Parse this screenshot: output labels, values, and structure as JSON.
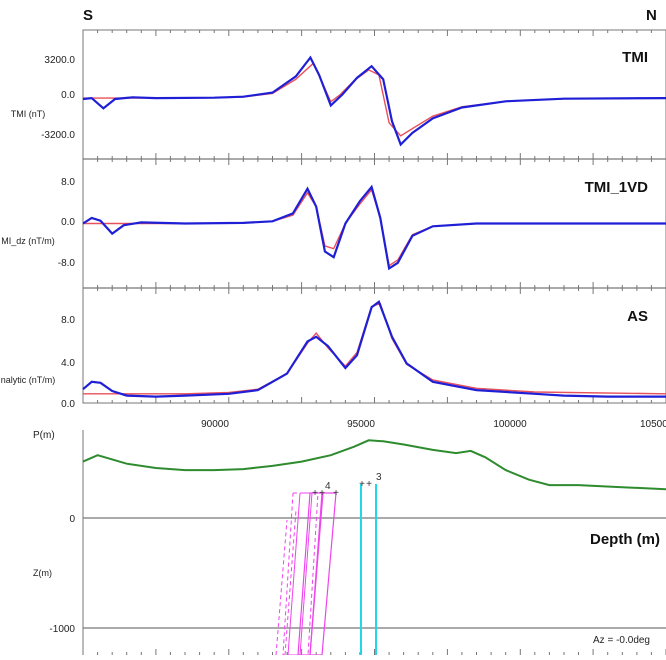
{
  "header": {
    "left_label": "S",
    "right_label": "N"
  },
  "chart_data": [
    {
      "type": "line",
      "title": "TMI",
      "ylabel": "TMI (nT)",
      "yticks": [
        "3200.0",
        "0.0",
        "-3200.0"
      ],
      "ylim": [
        -4200,
        4700
      ],
      "x_range": [
        85500,
        105500
      ],
      "series": [
        {
          "color": "#e8505a",
          "points": [
            [
              85500,
              0
            ],
            [
              86500,
              0
            ],
            [
              88000,
              0
            ],
            [
              90000,
              20
            ],
            [
              91000,
              80
            ],
            [
              92000,
              320
            ],
            [
              92800,
              1300
            ],
            [
              93400,
              2400
            ],
            [
              93700,
              1100
            ],
            [
              94000,
              -250
            ],
            [
              94300,
              200
            ],
            [
              94800,
              1200
            ],
            [
              95300,
              1950
            ],
            [
              95650,
              1600
            ],
            [
              96000,
              -1700
            ],
            [
              96400,
              -2600
            ],
            [
              96800,
              -2100
            ],
            [
              97500,
              -1250
            ],
            [
              98500,
              -600
            ],
            [
              100000,
              -220
            ],
            [
              102000,
              -50
            ],
            [
              105500,
              0
            ]
          ]
        },
        {
          "color": "#1f1fd6",
          "points": [
            [
              85500,
              -60
            ],
            [
              85800,
              0
            ],
            [
              86200,
              -700
            ],
            [
              86600,
              -60
            ],
            [
              87200,
              60
            ],
            [
              88000,
              0
            ],
            [
              90000,
              30
            ],
            [
              91000,
              100
            ],
            [
              92000,
              380
            ],
            [
              92800,
              1500
            ],
            [
              93300,
              2800
            ],
            [
              93600,
              1600
            ],
            [
              94000,
              -500
            ],
            [
              94400,
              250
            ],
            [
              94900,
              1400
            ],
            [
              95400,
              2200
            ],
            [
              95800,
              1300
            ],
            [
              96100,
              -1600
            ],
            [
              96400,
              -3200
            ],
            [
              96800,
              -2400
            ],
            [
              97500,
              -1400
            ],
            [
              98500,
              -650
            ],
            [
              100000,
              -220
            ],
            [
              102000,
              -40
            ],
            [
              105500,
              0
            ]
          ]
        }
      ]
    },
    {
      "type": "line",
      "title": "TMI_1VD",
      "ylabel": "MI_dz (nT/m)",
      "yticks": [
        "8.0",
        "0.0",
        "-8.0"
      ],
      "ylim": [
        -11.5,
        11.5
      ],
      "x_range": [
        85500,
        105500
      ],
      "series": [
        {
          "color": "#e8505a",
          "points": [
            [
              85500,
              0
            ],
            [
              87000,
              0
            ],
            [
              89000,
              0
            ],
            [
              91000,
              0.1
            ],
            [
              92000,
              0.4
            ],
            [
              92700,
              1.5
            ],
            [
              93200,
              5.5
            ],
            [
              93500,
              3
            ],
            [
              93800,
              -4
            ],
            [
              94100,
              -4.5
            ],
            [
              94500,
              0
            ],
            [
              95000,
              3.5
            ],
            [
              95400,
              6
            ],
            [
              95700,
              1
            ],
            [
              96000,
              -7.5
            ],
            [
              96300,
              -6.5
            ],
            [
              96800,
              -2
            ],
            [
              97500,
              -0.5
            ],
            [
              99000,
              0
            ],
            [
              105500,
              0
            ]
          ]
        },
        {
          "color": "#1f1fd6",
          "points": [
            [
              85500,
              0
            ],
            [
              85800,
              1
            ],
            [
              86100,
              0.5
            ],
            [
              86500,
              -1.8
            ],
            [
              86900,
              -0.3
            ],
            [
              87500,
              0.2
            ],
            [
              89000,
              0
            ],
            [
              91000,
              0.1
            ],
            [
              92000,
              0.4
            ],
            [
              92700,
              1.8
            ],
            [
              93200,
              6.2
            ],
            [
              93500,
              3
            ],
            [
              93800,
              -5
            ],
            [
              94100,
              -6
            ],
            [
              94500,
              0
            ],
            [
              95000,
              4
            ],
            [
              95400,
              6.5
            ],
            [
              95700,
              1
            ],
            [
              96000,
              -8
            ],
            [
              96300,
              -7
            ],
            [
              96800,
              -2.2
            ],
            [
              97500,
              -0.5
            ],
            [
              99000,
              0
            ],
            [
              105500,
              0
            ]
          ]
        }
      ]
    },
    {
      "type": "line",
      "title": "AS",
      "ylabel": "nalytic (nT/m)",
      "yticks": [
        "8.0",
        "4.0",
        "0.0"
      ],
      "ylim": [
        -1,
        11.5
      ],
      "x_range": [
        85500,
        105500
      ],
      "series": [
        {
          "color": "#e8505a",
          "points": [
            [
              85500,
              0
            ],
            [
              87000,
              0
            ],
            [
              89000,
              0
            ],
            [
              90500,
              0.15
            ],
            [
              91500,
              0.5
            ],
            [
              92500,
              2.2
            ],
            [
              93200,
              5.5
            ],
            [
              93500,
              6.6
            ],
            [
              93900,
              5
            ],
            [
              94500,
              3
            ],
            [
              94900,
              4.5
            ],
            [
              95400,
              9.5
            ],
            [
              95700,
              9.8
            ],
            [
              96100,
              6
            ],
            [
              96600,
              3.2
            ],
            [
              97500,
              1.5
            ],
            [
              99000,
              0.6
            ],
            [
              101000,
              0.2
            ],
            [
              105500,
              0
            ]
          ]
        },
        {
          "color": "#1f1fd6",
          "points": [
            [
              85500,
              0.5
            ],
            [
              85800,
              1.3
            ],
            [
              86100,
              1.2
            ],
            [
              86500,
              0.3
            ],
            [
              87000,
              -0.2
            ],
            [
              88000,
              -0.3
            ],
            [
              89000,
              -0.2
            ],
            [
              90500,
              0
            ],
            [
              91500,
              0.4
            ],
            [
              92500,
              2.2
            ],
            [
              93200,
              5.7
            ],
            [
              93500,
              6.2
            ],
            [
              93900,
              5.2
            ],
            [
              94500,
              2.8
            ],
            [
              94900,
              4.2
            ],
            [
              95400,
              9.4
            ],
            [
              95650,
              10
            ],
            [
              96100,
              6.2
            ],
            [
              96600,
              3.3
            ],
            [
              97500,
              1.3
            ],
            [
              99000,
              0.4
            ],
            [
              101000,
              0
            ],
            [
              102000,
              -0.2
            ],
            [
              103500,
              -0.3
            ],
            [
              105500,
              -0.3
            ]
          ]
        }
      ]
    },
    {
      "type": "line",
      "title": "Depth (m)",
      "ylabel": "Z(m)",
      "top_label": "P(m)",
      "xticks": [
        "90000",
        "95000",
        "100000",
        "10500"
      ],
      "yticks": [
        "0",
        "-1000"
      ],
      "ylim": [
        -1200,
        1000
      ],
      "x_range": [
        85500,
        105500
      ],
      "annotation": "Az = -0.0deg",
      "body_labels": [
        "4",
        "3"
      ],
      "series": [
        {
          "color": "#2e8b2e",
          "points": [
            [
              85500,
              560
            ],
            [
              86000,
              620
            ],
            [
              87000,
              540
            ],
            [
              88000,
              500
            ],
            [
              89000,
              480
            ],
            [
              90000,
              480
            ],
            [
              91000,
              490
            ],
            [
              92000,
              520
            ],
            [
              93000,
              560
            ],
            [
              94000,
              620
            ],
            [
              94800,
              700
            ],
            [
              95300,
              760
            ],
            [
              95800,
              750
            ],
            [
              96500,
              720
            ],
            [
              97500,
              670
            ],
            [
              98300,
              640
            ],
            [
              98800,
              660
            ],
            [
              99300,
              600
            ],
            [
              100000,
              480
            ],
            [
              100800,
              390
            ],
            [
              101500,
              340
            ],
            [
              102500,
              340
            ],
            [
              104000,
              320
            ],
            [
              105500,
              300
            ]
          ]
        }
      ]
    }
  ],
  "colors": {
    "observed": "#1f1fd6",
    "calculated": "#e8505a",
    "topography": "#2e8b2e",
    "magenta": "#ee44ee",
    "cyan": "#22d8e8",
    "frame": "#777777"
  }
}
